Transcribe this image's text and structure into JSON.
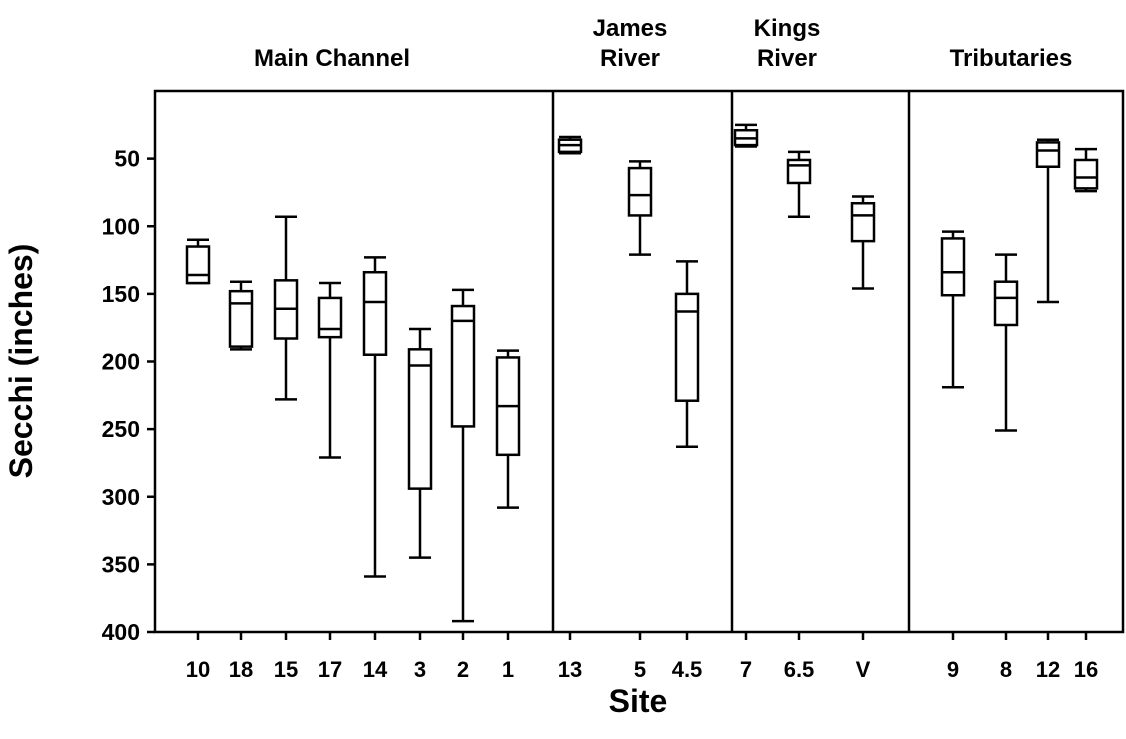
{
  "chart_data": {
    "type": "box",
    "xlabel": "Site",
    "ylabel": "Secchi (inches)",
    "y_axis_inverted": true,
    "ylim": [
      400,
      0
    ],
    "yticks": [
      50,
      100,
      150,
      200,
      250,
      300,
      350,
      400
    ],
    "groups": [
      {
        "label_lines": [
          "Main Channel"
        ],
        "sites": [
          "10",
          "18",
          "15",
          "17",
          "14",
          "3",
          "2",
          "1"
        ]
      },
      {
        "label_lines": [
          "James",
          "River"
        ],
        "sites": [
          "13",
          "5",
          "4.5"
        ]
      },
      {
        "label_lines": [
          "Kings",
          "River"
        ],
        "sites": [
          "7",
          "6.5",
          "V"
        ]
      },
      {
        "label_lines": [
          "Tributaries"
        ],
        "sites": [
          "9",
          "8",
          "12",
          "16"
        ]
      }
    ],
    "boxes": [
      {
        "site": "10",
        "whisker_low": 110,
        "q1": 115,
        "median": 136,
        "q3": 142,
        "whisker_high": 142
      },
      {
        "site": "18",
        "whisker_low": 141,
        "q1": 148,
        "median": 157,
        "q3": 189,
        "whisker_high": 191
      },
      {
        "site": "15",
        "whisker_low": 93,
        "q1": 140,
        "median": 161,
        "q3": 183,
        "whisker_high": 228
      },
      {
        "site": "17",
        "whisker_low": 142,
        "q1": 153,
        "median": 176,
        "q3": 182,
        "whisker_high": 271
      },
      {
        "site": "14",
        "whisker_low": 123,
        "q1": 134,
        "median": 156,
        "q3": 195,
        "whisker_high": 359
      },
      {
        "site": "3",
        "whisker_low": 176,
        "q1": 191,
        "median": 203,
        "q3": 294,
        "whisker_high": 345
      },
      {
        "site": "2",
        "whisker_low": 147,
        "q1": 159,
        "median": 170,
        "q3": 248,
        "whisker_high": 392
      },
      {
        "site": "1",
        "whisker_low": 192,
        "q1": 197,
        "median": 233,
        "q3": 269,
        "whisker_high": 308
      },
      {
        "site": "13",
        "whisker_low": 34,
        "q1": 36,
        "median": 40,
        "q3": 45,
        "whisker_high": 46
      },
      {
        "site": "5",
        "whisker_low": 52,
        "q1": 57,
        "median": 77,
        "q3": 92,
        "whisker_high": 121
      },
      {
        "site": "4.5",
        "whisker_low": 126,
        "q1": 150,
        "median": 163,
        "q3": 229,
        "whisker_high": 263
      },
      {
        "site": "7",
        "whisker_low": 25,
        "q1": 29,
        "median": 35,
        "q3": 40,
        "whisker_high": 41
      },
      {
        "site": "6.5",
        "whisker_low": 45,
        "q1": 51,
        "median": 55,
        "q3": 68,
        "whisker_high": 93
      },
      {
        "site": "V",
        "whisker_low": 78,
        "q1": 83,
        "median": 92,
        "q3": 111,
        "whisker_high": 146
      },
      {
        "site": "9",
        "whisker_low": 104,
        "q1": 109,
        "median": 134,
        "q3": 151,
        "whisker_high": 219
      },
      {
        "site": "8",
        "whisker_low": 121,
        "q1": 141,
        "median": 153,
        "q3": 173,
        "whisker_high": 251
      },
      {
        "site": "12",
        "whisker_low": 36,
        "q1": 38,
        "median": 44,
        "q3": 56,
        "whisker_high": 156
      },
      {
        "site": "16",
        "whisker_low": 43,
        "q1": 51,
        "median": 64,
        "q3": 72,
        "whisker_high": 74
      }
    ],
    "grid": false,
    "legend": false
  }
}
